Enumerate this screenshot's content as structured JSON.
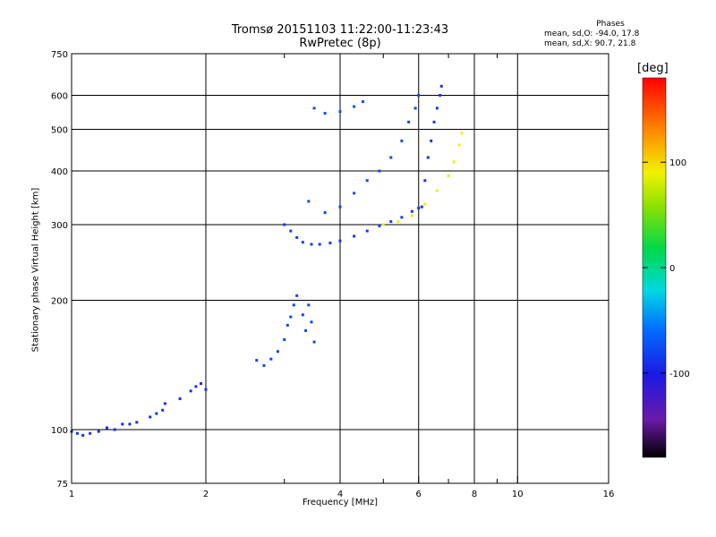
{
  "title": "Tromsø 20151103 11:22:00-11:23:43",
  "subtitle": "RwPretec (8p)",
  "phase_info": {
    "heading": "Phases",
    "o_line": "mean, sd,O: -94.0, 17.8",
    "x_line": "mean, sd,X:  90.7, 21.8"
  },
  "chart_data": {
    "type": "scatter",
    "xlabel": "Frequency [MHz]",
    "ylabel": "Stationary phase Virtual Height [km]",
    "x_scale": "log",
    "y_scale": "log",
    "xlim": [
      1,
      16
    ],
    "ylim": [
      75,
      750
    ],
    "x_ticks": [
      1,
      2,
      4,
      6,
      8,
      10,
      16
    ],
    "x_tick_labels": [
      "1",
      "2",
      "4",
      "6",
      "8",
      "10",
      "16"
    ],
    "x_minor_ticks": [
      3,
      5,
      7,
      9
    ],
    "y_ticks": [
      75,
      100,
      200,
      300,
      400,
      500,
      600,
      750
    ],
    "y_tick_labels": [
      "75",
      "100",
      "200",
      "300",
      "400",
      "500",
      "600",
      "750"
    ],
    "grid": true,
    "colorbar": {
      "unit": "[deg]",
      "tick_labels": [
        "100",
        "0",
        "-100"
      ],
      "ticks": [
        100,
        0,
        -100
      ],
      "range": [
        -180,
        180
      ]
    },
    "series": [
      {
        "color_phase": -110,
        "points": [
          [
            1.0,
            99
          ],
          [
            1.03,
            98
          ],
          [
            1.06,
            97
          ],
          [
            1.1,
            98
          ],
          [
            1.15,
            99
          ],
          [
            1.2,
            101
          ],
          [
            1.25,
            100
          ],
          [
            1.3,
            103
          ],
          [
            1.35,
            103
          ],
          [
            1.4,
            104
          ],
          [
            1.5,
            107
          ],
          [
            1.55,
            109
          ],
          [
            1.6,
            111
          ],
          [
            1.62,
            115
          ],
          [
            1.75,
            118
          ],
          [
            1.85,
            123
          ],
          [
            1.9,
            126
          ],
          [
            1.95,
            128
          ],
          [
            2.0,
            124
          ]
        ]
      },
      {
        "color_phase": -100,
        "points": [
          [
            2.6,
            145
          ],
          [
            2.7,
            141
          ],
          [
            2.8,
            146
          ],
          [
            2.9,
            152
          ],
          [
            3.0,
            162
          ],
          [
            3.05,
            175
          ],
          [
            3.1,
            183
          ],
          [
            3.15,
            195
          ],
          [
            3.2,
            205
          ],
          [
            3.3,
            185
          ],
          [
            3.35,
            170
          ],
          [
            3.4,
            195
          ],
          [
            3.45,
            178
          ],
          [
            3.5,
            160
          ]
        ]
      },
      {
        "color_phase": -105,
        "points": [
          [
            3.0,
            300
          ],
          [
            3.1,
            290
          ],
          [
            3.2,
            280
          ],
          [
            3.3,
            273
          ],
          [
            3.45,
            270
          ],
          [
            3.6,
            270
          ],
          [
            3.8,
            272
          ],
          [
            4.0,
            275
          ],
          [
            4.3,
            282
          ],
          [
            4.6,
            290
          ],
          [
            4.9,
            298
          ],
          [
            5.2,
            305
          ],
          [
            5.5,
            312
          ],
          [
            5.8,
            322
          ],
          [
            6.0,
            328
          ]
        ]
      },
      {
        "color_phase": -100,
        "points": [
          [
            3.4,
            340
          ],
          [
            3.7,
            320
          ],
          [
            4.0,
            330
          ],
          [
            4.3,
            355
          ],
          [
            4.6,
            380
          ],
          [
            4.9,
            400
          ],
          [
            5.2,
            430
          ],
          [
            5.5,
            470
          ],
          [
            5.7,
            520
          ],
          [
            5.9,
            560
          ],
          [
            6.0,
            600
          ]
        ]
      },
      {
        "color_phase": -110,
        "points": [
          [
            6.1,
            330
          ],
          [
            6.2,
            380
          ],
          [
            6.3,
            430
          ],
          [
            6.4,
            470
          ],
          [
            6.5,
            520
          ],
          [
            6.6,
            560
          ],
          [
            6.7,
            600
          ],
          [
            6.75,
            630
          ]
        ]
      },
      {
        "color_phase": 95,
        "points": [
          [
            5.0,
            300
          ],
          [
            5.4,
            305
          ],
          [
            5.8,
            315
          ],
          [
            6.2,
            335
          ],
          [
            6.6,
            360
          ],
          [
            7.0,
            390
          ],
          [
            7.2,
            420
          ],
          [
            7.4,
            460
          ],
          [
            7.5,
            490
          ]
        ]
      },
      {
        "color_phase": -95,
        "points": [
          [
            3.5,
            560
          ],
          [
            3.7,
            545
          ],
          [
            4.0,
            550
          ],
          [
            4.3,
            565
          ],
          [
            4.5,
            580
          ]
        ]
      }
    ]
  }
}
